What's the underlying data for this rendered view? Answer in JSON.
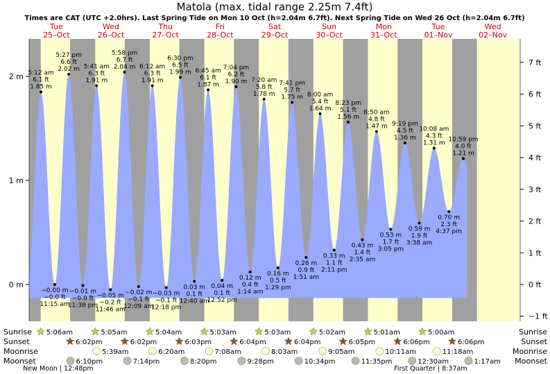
{
  "chart_data": {
    "type": "area",
    "title": "Matola (max. tidal range 2.25m 7.4ft)",
    "subtitle": "Times are CAT (UTC +2.0hrs). Last Spring Tide on Mon 10 Oct (h=2.04m 6.7ft). Next Spring Tide on Wed 26 Oct (h=2.04m 6.7ft)",
    "days": [
      {
        "dow": "Tue",
        "date": "25–Oct"
      },
      {
        "dow": "Wed",
        "date": "26–Oct"
      },
      {
        "dow": "Thu",
        "date": "27–Oct"
      },
      {
        "dow": "Fri",
        "date": "28–Oct"
      },
      {
        "dow": "Sat",
        "date": "29–Oct"
      },
      {
        "dow": "Sun",
        "date": "30–Oct"
      },
      {
        "dow": "Mon",
        "date": "31–Oct"
      },
      {
        "dow": "Tue",
        "date": "01–Nov"
      },
      {
        "dow": "Wed",
        "date": "02–Nov"
      }
    ],
    "y_left_ticks": [
      {
        "v": 0,
        "label": "0 m"
      },
      {
        "v": 1,
        "label": "1 m"
      },
      {
        "v": 2,
        "label": "2 m"
      }
    ],
    "y_right_ticks": [
      {
        "v": -1,
        "label": "−1 ft"
      },
      {
        "v": 0,
        "label": "0 ft"
      },
      {
        "v": 1,
        "label": "1 ft"
      },
      {
        "v": 2,
        "label": "2 ft"
      },
      {
        "v": 3,
        "label": "3 ft"
      },
      {
        "v": 4,
        "label": "4 ft"
      },
      {
        "v": 5,
        "label": "5 ft"
      },
      {
        "v": 6,
        "label": "6 ft"
      },
      {
        "v": 7,
        "label": "7 ft"
      }
    ],
    "ylim_m": [
      -0.45,
      2.25
    ],
    "tides": [
      {
        "t": 5.2,
        "h": 1.85,
        "type": "high",
        "time": "5:12 am",
        "ft": "6.1 ft",
        "m": "1.85 m"
      },
      {
        "t": 11.25,
        "h": -0.0,
        "type": "low",
        "time": "11:15 am",
        "ft": "−0.0 ft",
        "m": "−0.00 m"
      },
      {
        "t": 17.45,
        "h": 2.02,
        "type": "high",
        "time": "5:27 pm",
        "ft": "6.6 ft",
        "m": "2.02 m"
      },
      {
        "t": 23.63,
        "h": -0.01,
        "type": "low",
        "time": "11:38 pm",
        "ft": "−0.0 ft",
        "m": "−0.01 m"
      },
      {
        "t": 29.68,
        "h": 1.91,
        "type": "high",
        "time": "5:41 am",
        "ft": "6.3 ft",
        "m": "1.91 m"
      },
      {
        "t": 35.77,
        "h": -0.05,
        "type": "low",
        "time": "11:46 am",
        "ft": "−0.2 ft",
        "m": "−0.05 m"
      },
      {
        "t": 41.97,
        "h": 2.04,
        "type": "high",
        "time": "5:58 pm",
        "ft": "6.7 ft",
        "m": "2.04 m"
      },
      {
        "t": 48.15,
        "h": -0.02,
        "type": "low",
        "time": "12:09 am",
        "ft": "−0.1 ft",
        "m": "−0.02 m"
      },
      {
        "t": 54.2,
        "h": 1.91,
        "type": "high",
        "time": "6:12 am",
        "ft": "6.3 ft",
        "m": "1.91 m"
      },
      {
        "t": 60.3,
        "h": -0.03,
        "type": "low",
        "time": "12:18 pm",
        "ft": "−0.1 ft",
        "m": "−0.03 m"
      },
      {
        "t": 66.5,
        "h": 1.99,
        "type": "high",
        "time": "6:30 pm",
        "ft": "6.5 ft",
        "m": "1.99 m"
      },
      {
        "t": 72.67,
        "h": 0.03,
        "type": "low",
        "time": "12:40 am",
        "ft": "0.1 ft",
        "m": "0.03 m"
      },
      {
        "t": 78.75,
        "h": 1.87,
        "type": "high",
        "time": "6:45 am",
        "ft": "6.1 ft",
        "m": "1.87 m"
      },
      {
        "t": 84.87,
        "h": 0.04,
        "type": "low",
        "time": "12:52 pm",
        "ft": "0.1 ft",
        "m": "0.04 m"
      },
      {
        "t": 91.07,
        "h": 1.9,
        "type": "high",
        "time": "7:04 pm",
        "ft": "6.2 ft",
        "m": "1.90 m"
      },
      {
        "t": 97.23,
        "h": 0.12,
        "type": "low",
        "time": "1:14 am",
        "ft": "0.4 ft",
        "m": "0.12 m"
      },
      {
        "t": 103.33,
        "h": 1.78,
        "type": "high",
        "time": "7:20 am",
        "ft": "5.8 ft",
        "m": "1.78 m"
      },
      {
        "t": 109.48,
        "h": 0.16,
        "type": "low",
        "time": "1:29 pm",
        "ft": "0.5 ft",
        "m": "0.16 m"
      },
      {
        "t": 115.68,
        "h": 1.75,
        "type": "high",
        "time": "7:41 pm",
        "ft": "5.7 ft",
        "m": "1.75 m"
      },
      {
        "t": 121.85,
        "h": 0.26,
        "type": "low",
        "time": "1:51 am",
        "ft": "0.9 ft",
        "m": "0.26 m"
      },
      {
        "t": 128.0,
        "h": 1.64,
        "type": "high",
        "time": "8:00 am",
        "ft": "5.4 ft",
        "m": "1.64 m"
      },
      {
        "t": 134.18,
        "h": 0.33,
        "type": "low",
        "time": "2:11 pm",
        "ft": "1.1 ft",
        "m": "0.33 m"
      },
      {
        "t": 140.38,
        "h": 1.56,
        "type": "high",
        "time": "8:23 pm",
        "ft": "5.1 ft",
        "m": "1.56 m"
      },
      {
        "t": 146.58,
        "h": 0.43,
        "type": "low",
        "time": "2:35 am",
        "ft": "1.4 ft",
        "m": "0.43 m"
      },
      {
        "t": 152.83,
        "h": 1.47,
        "type": "high",
        "time": "8:50 am",
        "ft": "4.8 ft",
        "m": "1.47 m"
      },
      {
        "t": 159.08,
        "h": 0.53,
        "type": "low",
        "time": "3:05 pm",
        "ft": "1.7 ft",
        "m": "0.53 m"
      },
      {
        "t": 165.32,
        "h": 1.36,
        "type": "high",
        "time": "9:19 pm",
        "ft": "4.5 ft",
        "m": "1.36 m"
      },
      {
        "t": 171.63,
        "h": 0.59,
        "type": "low",
        "time": "3:38 am",
        "ft": "1.9 ft",
        "m": "0.59 m"
      },
      {
        "t": 178.13,
        "h": 1.31,
        "type": "high",
        "time": "10:08 am",
        "ft": "4.3 ft",
        "m": "1.31 m"
      },
      {
        "t": 184.62,
        "h": 0.7,
        "type": "low",
        "time": "4:37 pm",
        "ft": "2.3 ft",
        "m": "0.70 m"
      },
      {
        "t": 190.98,
        "h": 1.21,
        "type": "high",
        "time": "10:59 pm",
        "ft": "4.0 ft",
        "m": "1.21 m"
      }
    ],
    "sun": [
      {
        "rise": 5.1,
        "set": 18.03,
        "rise_label": "5:06am",
        "set_label": "6:02pm"
      },
      {
        "rise": 29.08,
        "set": 42.03,
        "rise_label": "5:05am",
        "set_label": "6:02pm"
      },
      {
        "rise": 53.07,
        "set": 66.05,
        "rise_label": "5:04am",
        "set_label": "6:03pm"
      },
      {
        "rise": 77.05,
        "set": 90.07,
        "rise_label": "5:03am",
        "set_label": "6:04pm"
      },
      {
        "rise": 101.05,
        "set": 114.07,
        "rise_label": "5:03am",
        "set_label": "6:04pm"
      },
      {
        "rise": 125.03,
        "set": 138.08,
        "rise_label": "5:02am",
        "set_label": "6:05pm"
      },
      {
        "rise": 149.02,
        "set": 162.1,
        "rise_label": "5:01am",
        "set_label": "6:06pm"
      },
      {
        "rise": 173.0,
        "set": 186.1,
        "rise_label": "5:00am",
        "set_label": "6:06pm"
      }
    ],
    "moonrise": [
      {
        "t": 29.65,
        "label": "5:39am"
      },
      {
        "t": 54.33,
        "label": "6:20am"
      },
      {
        "t": 79.13,
        "label": "7:08am"
      },
      {
        "t": 104.05,
        "label": "8:03am"
      },
      {
        "t": 129.08,
        "label": "9:05am"
      },
      {
        "t": 154.18,
        "label": "10:11am"
      },
      {
        "t": 179.3,
        "label": "11:18am"
      }
    ],
    "moonset": [
      {
        "t": 18.17,
        "label": "6:10pm"
      },
      {
        "t": 43.23,
        "label": "7:14pm"
      },
      {
        "t": 68.33,
        "label": "8:20pm"
      },
      {
        "t": 93.47,
        "label": "9:28pm"
      },
      {
        "t": 118.57,
        "label": "10:34pm"
      },
      {
        "t": 143.58,
        "label": "11:35pm"
      },
      {
        "t": 168.5,
        "label": "12:30am"
      },
      {
        "t": 193.28,
        "label": "1:17am"
      }
    ],
    "row_labels": [
      "Sunrise",
      "Sunset",
      "Moonrise",
      "Moonset"
    ],
    "moon_phases": [
      {
        "t": 12.8,
        "label": "New Moon | 12:48pm"
      },
      {
        "t": 176.62,
        "label": "First Quarter | 8:37am"
      }
    ]
  },
  "colors": {
    "day": "#ffffcc",
    "night": "#a0a0a0",
    "water": "#99aaff",
    "day_text": "#cc0000",
    "sun_star": "#cccc44",
    "sunset_star": "#995522",
    "moonrise": "#ffffcc",
    "moonset": "#bbbbaa"
  }
}
